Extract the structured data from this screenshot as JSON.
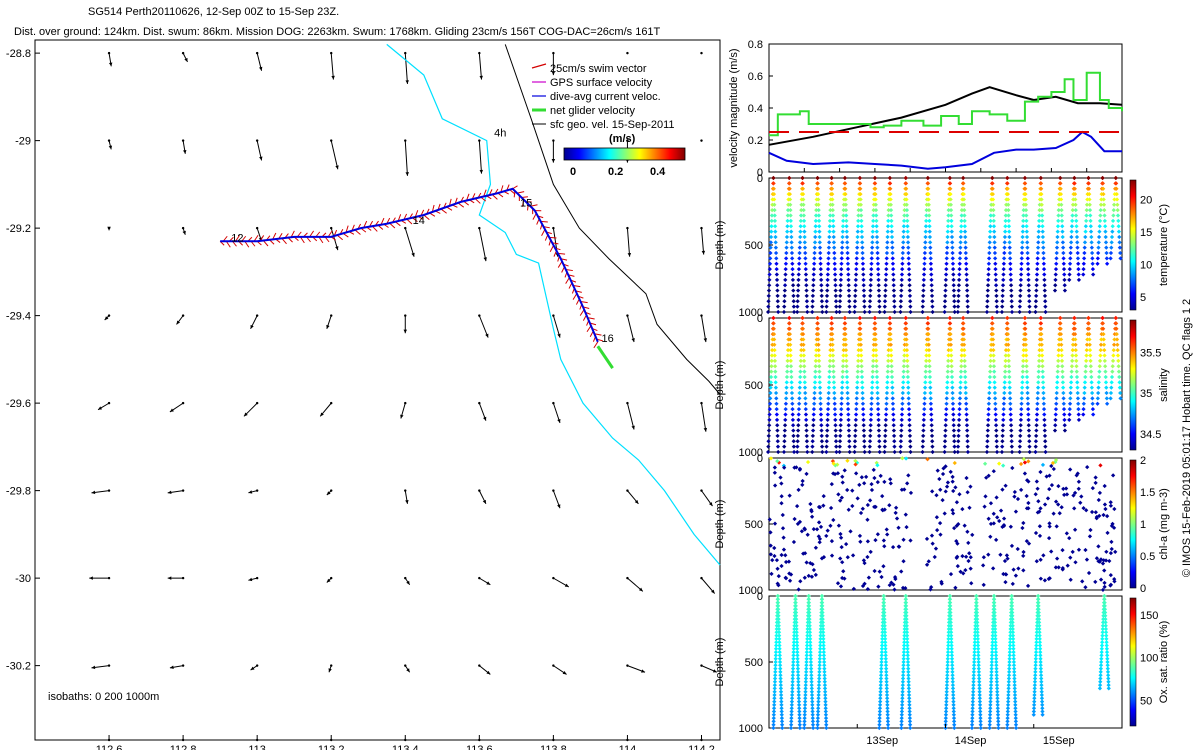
{
  "header": {
    "title": "SG514 Perth20110626, 12-Sep 00Z to 15-Sep 23Z.",
    "subtitle": "Dist. over ground: 124km. Dist. swum: 86km. Mission DOG: 2263km. Swum: 1768km. Gliding 23cm/s 156T COG-DAC=26cm/s 161T"
  },
  "side_label": "© IMOS 15-Feb-2019 05:01:17 Hobart time. QC flags 1  2",
  "colors": {
    "swim": "#d40000",
    "gps": "#cc00cc",
    "dive_avg": "#0000dd",
    "net": "#33dd33",
    "coast": "#00e0ff",
    "isobath": "#000000",
    "dashed": "#dd0000"
  },
  "chart_data": [
    {
      "type": "map",
      "id": "track_map",
      "xlim": [
        112.4,
        114.25
      ],
      "ylim": [
        -30.37,
        -28.77
      ],
      "x_ticks": [
        112.6,
        112.8,
        113,
        113.2,
        113.4,
        113.6,
        113.8,
        114,
        114.2
      ],
      "y_ticks": [
        -28.8,
        -29,
        -29.2,
        -29.4,
        -29.6,
        -29.8,
        -30,
        -30.2
      ],
      "legend": {
        "placement": "top-right",
        "entries": [
          "25cm/s swim vector",
          "GPS surface velocity",
          "dive-avg current veloc.",
          "net glider velocity",
          "sfc geo. vel. 15-Sep-2011"
        ]
      },
      "colorbar": {
        "title": "(m/s)",
        "ticks": [
          "0",
          "0.2",
          "0.4"
        ]
      },
      "isobath_label": "isobaths: 0   200  1000m",
      "day_labels": [
        {
          "text": "12",
          "lon": 112.93,
          "lat": -29.23
        },
        {
          "text": "14",
          "lon": 113.42,
          "lat": -29.19
        },
        {
          "text": "15",
          "lon": 113.71,
          "lat": -29.15
        },
        {
          "text": "16",
          "lon": 113.93,
          "lat": -29.46
        },
        {
          "text": "4h",
          "lon": 113.64,
          "lat": -28.99
        }
      ],
      "track": [
        [
          112.9,
          -29.23
        ],
        [
          113.0,
          -29.23
        ],
        [
          113.1,
          -29.22
        ],
        [
          113.2,
          -29.22
        ],
        [
          113.28,
          -29.2
        ],
        [
          113.35,
          -29.19
        ],
        [
          113.45,
          -29.17
        ],
        [
          113.55,
          -29.14
        ],
        [
          113.65,
          -29.12
        ],
        [
          113.69,
          -29.11
        ],
        [
          113.75,
          -29.16
        ],
        [
          113.82,
          -29.27
        ],
        [
          113.88,
          -29.38
        ],
        [
          113.92,
          -29.46
        ]
      ],
      "net_velocity": {
        "start": [
          113.92,
          -29.47
        ],
        "end": [
          113.96,
          -29.52
        ]
      },
      "current_field": {
        "lons": [
          112.6,
          112.8,
          113,
          113.2,
          113.4,
          113.6,
          113.8,
          114,
          114.2
        ],
        "lats": [
          -28.8,
          -29,
          -29.2,
          -29.4,
          -29.6,
          -29.8,
          -30,
          -30.2,
          -30.37
        ],
        "u": [
          [
            0.01,
            0.02,
            0.02,
            0.01,
            0.01,
            0.01,
            0,
            0,
            0
          ],
          [
            0.01,
            0.01,
            0.02,
            0.03,
            0.01,
            0.01,
            0,
            0,
            0
          ],
          [
            0,
            0.01,
            0.02,
            0.03,
            0.04,
            0.03,
            0.02,
            0.01,
            0.01
          ],
          [
            -0.02,
            -0.03,
            -0.03,
            -0.02,
            0.0,
            0.04,
            0.03,
            0.03,
            0.02
          ],
          [
            -0.05,
            -0.06,
            -0.06,
            -0.05,
            -0.02,
            0.03,
            0.03,
            0.03,
            0.02
          ],
          [
            -0.08,
            -0.07,
            -0.04,
            -0.02,
            0.01,
            0.03,
            0.03,
            0.05,
            0.05
          ],
          [
            -0.09,
            -0.07,
            -0.04,
            -0.02,
            0.02,
            0.05,
            0.07,
            0.07,
            0.06
          ],
          [
            -0.08,
            -0.06,
            -0.03,
            -0.01,
            0.02,
            0.05,
            0.06,
            0.08,
            0.07
          ],
          [
            0,
            0,
            0,
            0,
            0,
            0,
            0,
            0,
            0
          ]
        ],
        "v": [
          [
            -0.06,
            -0.04,
            -0.08,
            -0.12,
            -0.14,
            -0.12,
            -0.1,
            0,
            0
          ],
          [
            -0.04,
            -0.06,
            -0.09,
            -0.13,
            -0.16,
            -0.15,
            -0.1,
            -0.1,
            0
          ],
          [
            -0.01,
            -0.03,
            -0.06,
            -0.1,
            -0.13,
            -0.15,
            -0.13,
            -0.13,
            -0.12
          ],
          [
            -0.02,
            -0.04,
            -0.06,
            -0.06,
            -0.08,
            -0.1,
            -0.1,
            -0.12,
            -0.12
          ],
          [
            -0.03,
            -0.04,
            -0.06,
            -0.06,
            -0.07,
            -0.08,
            -0.09,
            -0.12,
            -0.13
          ],
          [
            -0.01,
            -0.01,
            -0.01,
            -0.02,
            -0.06,
            -0.06,
            -0.08,
            -0.06,
            -0.07
          ],
          [
            0,
            0,
            -0.01,
            -0.02,
            -0.03,
            -0.03,
            -0.04,
            -0.06,
            -0.07
          ],
          [
            -0.01,
            -0.01,
            -0.02,
            -0.03,
            -0.03,
            -0.04,
            -0.04,
            -0.03,
            -0.03
          ],
          [
            0,
            0,
            0,
            0,
            0,
            0,
            0,
            0,
            0
          ]
        ]
      },
      "coastline_0m": [
        [
          113.35,
          -28.78
        ],
        [
          113.45,
          -28.85
        ],
        [
          113.5,
          -28.95
        ],
        [
          113.62,
          -29.0
        ],
        [
          113.63,
          -29.1
        ],
        [
          113.6,
          -29.17
        ],
        [
          113.67,
          -29.21
        ],
        [
          113.7,
          -29.26
        ],
        [
          113.76,
          -29.28
        ],
        [
          113.8,
          -29.43
        ],
        [
          113.82,
          -29.5
        ],
        [
          113.88,
          -29.6
        ],
        [
          113.96,
          -29.68
        ],
        [
          114.03,
          -29.73
        ],
        [
          114.1,
          -29.8
        ],
        [
          114.18,
          -29.9
        ],
        [
          114.25,
          -29.97
        ]
      ],
      "isobath_1000m": [
        [
          113.67,
          -28.78
        ],
        [
          113.74,
          -28.95
        ],
        [
          113.8,
          -29.1
        ],
        [
          113.87,
          -29.2
        ],
        [
          113.95,
          -29.27
        ],
        [
          114.05,
          -29.35
        ],
        [
          114.08,
          -29.42
        ],
        [
          114.16,
          -29.5
        ],
        [
          114.22,
          -29.55
        ],
        [
          114.25,
          -29.58
        ]
      ]
    },
    {
      "type": "line",
      "id": "velocity",
      "ylabel": "velocity magnitude (m/s)",
      "xlim": [
        12.0,
        16.0
      ],
      "ylim": [
        0,
        0.8
      ],
      "y_ticks": [
        0,
        0.2,
        0.4,
        0.6,
        0.8
      ],
      "series": [
        {
          "color": "#000000",
          "style": "solid",
          "x": [
            12.0,
            12.5,
            13.0,
            13.5,
            14.0,
            14.3,
            14.5,
            14.8,
            15.0,
            15.25,
            15.5,
            15.75,
            16.0
          ],
          "y": [
            0.17,
            0.22,
            0.28,
            0.34,
            0.42,
            0.49,
            0.53,
            0.48,
            0.45,
            0.47,
            0.43,
            0.43,
            0.42
          ]
        },
        {
          "color": "#33dd33",
          "style": "steps",
          "x": [
            12.0,
            12.1,
            12.35,
            12.45,
            12.8,
            12.95,
            13.15,
            13.3,
            13.5,
            13.75,
            13.95,
            14.15,
            14.3,
            14.5,
            14.7,
            14.9,
            15.05,
            15.2,
            15.35,
            15.45,
            15.6,
            15.75,
            15.85,
            16.0
          ],
          "y": [
            0.23,
            0.36,
            0.38,
            0.3,
            0.3,
            0.3,
            0.28,
            0.29,
            0.32,
            0.29,
            0.35,
            0.3,
            0.38,
            0.36,
            0.32,
            0.44,
            0.47,
            0.5,
            0.58,
            0.45,
            0.62,
            0.45,
            0.4,
            0.38
          ]
        },
        {
          "color": "#0000dd",
          "style": "solid",
          "x": [
            12.0,
            12.2,
            12.5,
            12.9,
            13.2,
            13.5,
            13.8,
            14.0,
            14.3,
            14.55,
            14.8,
            15.0,
            15.25,
            15.45,
            15.55,
            15.65,
            15.8,
            16.0
          ],
          "y": [
            0.12,
            0.07,
            0.05,
            0.06,
            0.05,
            0.04,
            0.02,
            0.03,
            0.05,
            0.12,
            0.14,
            0.14,
            0.15,
            0.2,
            0.25,
            0.22,
            0.13,
            0.13
          ]
        },
        {
          "color": "#dd0000",
          "style": "dashed",
          "x": [
            12.0,
            16.0
          ],
          "y": [
            0.25,
            0.25
          ]
        }
      ]
    },
    {
      "type": "scatter",
      "id": "temperature",
      "ylabel": "Depth (m)",
      "colorbar_label": "temperature (°C)",
      "colorbar_ticks": [
        "5",
        "10",
        "15",
        "20"
      ],
      "clim": [
        3,
        23
      ],
      "y_ticks": [
        "0",
        "500",
        "1000"
      ],
      "ylim": [
        0,
        1000
      ],
      "xlim": [
        12.0,
        16.0
      ],
      "profile_times": [
        12.05,
        12.23,
        12.38,
        12.55,
        12.71,
        12.86,
        13.03,
        13.2,
        13.37,
        13.55,
        13.8,
        14.05,
        14.2,
        14.53,
        14.7,
        14.9,
        15.08,
        15.3,
        15.46,
        15.62,
        15.78,
        15.93
      ]
    },
    {
      "type": "scatter",
      "id": "salinity",
      "ylabel": "Depth (m)",
      "colorbar_label": "salinity",
      "colorbar_ticks": [
        "34.5",
        "35",
        "35.5"
      ],
      "clim": [
        34.3,
        35.9
      ],
      "y_ticks": [
        "0",
        "500",
        "1000"
      ],
      "ylim": [
        0,
        1000
      ],
      "xlim": [
        12.0,
        16.0
      ]
    },
    {
      "type": "scatter",
      "id": "chla",
      "ylabel": "Depth (m)",
      "colorbar_label": "chl-a (mg m-3)",
      "colorbar_ticks": [
        "0",
        "0.5",
        "1",
        "1.5",
        "2"
      ],
      "clim": [
        0,
        2
      ],
      "y_ticks": [
        "0",
        "500",
        "1000"
      ],
      "ylim": [
        0,
        1000
      ],
      "xlim": [
        12.0,
        16.0
      ]
    },
    {
      "type": "scatter",
      "id": "oxygen",
      "ylabel": "Depth (m)",
      "colorbar_label": "Ox. sat. ratio (%)",
      "colorbar_ticks": [
        "50",
        "100",
        "150"
      ],
      "clim": [
        20,
        170
      ],
      "y_ticks": [
        "0",
        "500",
        "1000"
      ],
      "ylim": [
        0,
        1000
      ],
      "xlim": [
        12.0,
        16.0
      ],
      "x_ticks": [
        "13Sep",
        "14Sep",
        "15Sep"
      ],
      "x_tick_values": [
        13,
        14,
        15
      ],
      "profile_times": [
        12.1,
        12.3,
        12.45,
        12.6,
        13.3,
        13.55,
        14.05,
        14.35,
        14.55,
        14.75,
        15.05,
        15.8
      ]
    }
  ]
}
